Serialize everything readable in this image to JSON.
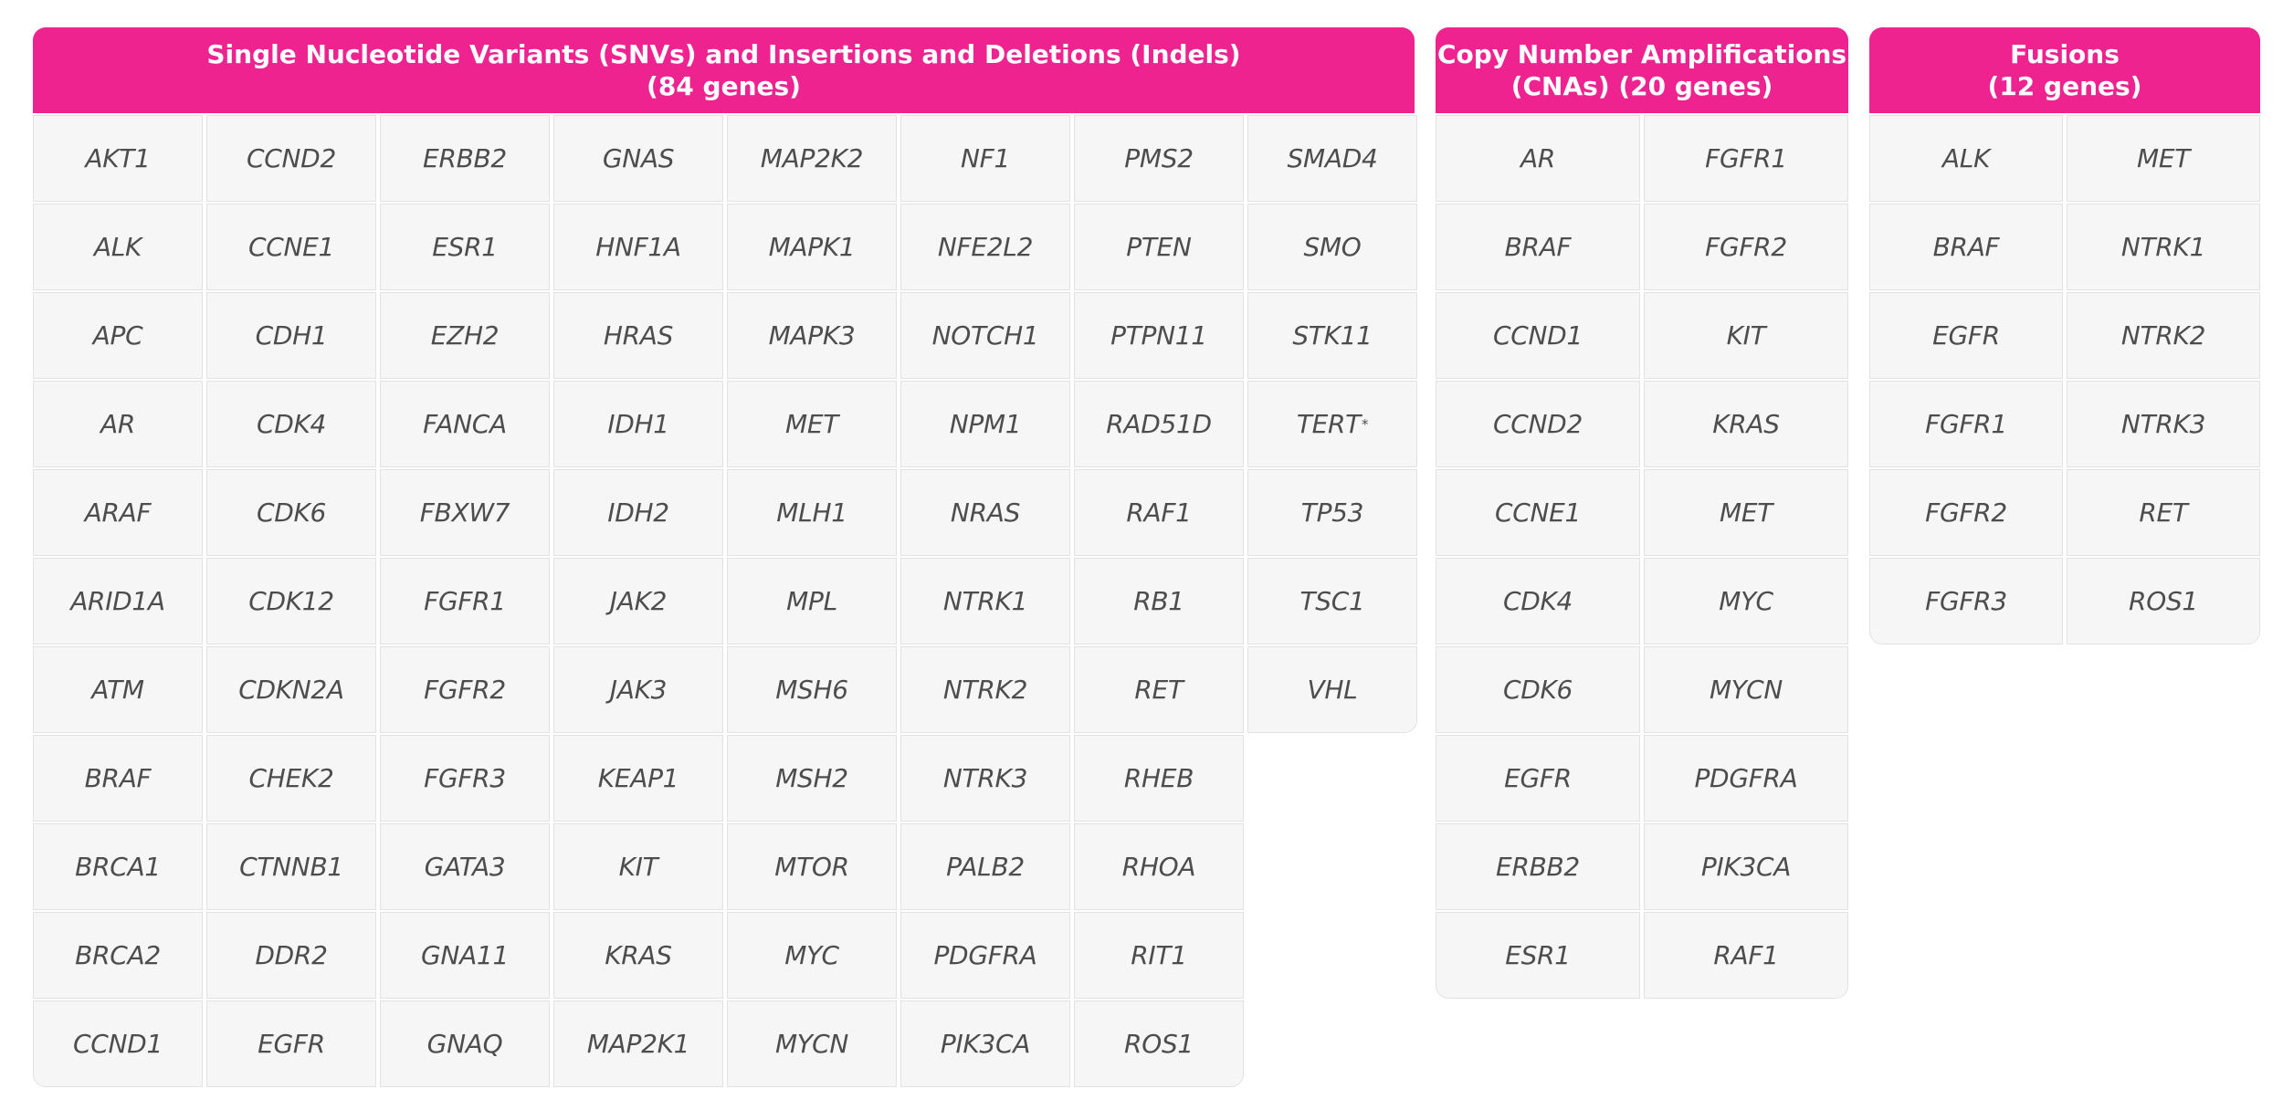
{
  "panels": [
    {
      "header_line1": "Single Nucleotide Variants (SNVs) and Insertions and Deletions (Indels)",
      "header_line2": "(84 genes)",
      "columns": [
        [
          "AKT1",
          "ALK",
          "APC",
          "AR",
          "ARAF",
          "ARID1A",
          "ATM",
          "BRAF",
          "BRCA1",
          "BRCA2",
          "CCND1"
        ],
        [
          "CCND2",
          "CCNE1",
          "CDH1",
          "CDK4",
          "CDK6",
          "CDK12",
          "CDKN2A",
          "CHEK2",
          "CTNNB1",
          "DDR2",
          "EGFR"
        ],
        [
          "ERBB2",
          "ESR1",
          "EZH2",
          "FANCA",
          "FBXW7",
          "FGFR1",
          "FGFR2",
          "FGFR3",
          "GATA3",
          "GNA11",
          "GNAQ"
        ],
        [
          "GNAS",
          "HNF1A",
          "HRAS",
          "IDH1",
          "IDH2",
          "JAK2",
          "JAK3",
          "KEAP1",
          "KIT",
          "KRAS",
          "MAP2K1"
        ],
        [
          "MAP2K2",
          "MAPK1",
          "MAPK3",
          "MET",
          "MLH1",
          "MPL",
          "MSH6",
          "MSH2",
          "MTOR",
          "MYC",
          "MYCN"
        ],
        [
          "NF1",
          "NFE2L2",
          "NOTCH1",
          "NPM1",
          "NRAS",
          "NTRK1",
          "NTRK2",
          "NTRK3",
          "PALB2",
          "PDGFRA",
          "PIK3CA"
        ],
        [
          "PMS2",
          "PTEN",
          "PTPN11",
          "RAD51D",
          "RAF1",
          "RB1",
          "RET",
          "RHEB",
          "RHOA",
          "RIT1",
          "ROS1"
        ],
        [
          "SMAD4",
          "SMO",
          "STK11",
          "TERT",
          "TP53",
          "TSC1",
          "VHL"
        ]
      ],
      "footnote_marks": {
        "TERT": "*"
      }
    },
    {
      "header_line1": "Copy Number Amplifications",
      "header_line2": "(CNAs) (20 genes)",
      "columns": [
        [
          "AR",
          "BRAF",
          "CCND1",
          "CCND2",
          "CCNE1",
          "CDK4",
          "CDK6",
          "EGFR",
          "ERBB2",
          "ESR1"
        ],
        [
          "FGFR1",
          "FGFR2",
          "KIT",
          "KRAS",
          "MET",
          "MYC",
          "MYCN",
          "PDGFRA",
          "PIK3CA",
          "RAF1"
        ]
      ]
    },
    {
      "header_line1": "Fusions",
      "header_line2": "(12 genes)",
      "columns": [
        [
          "ALK",
          "BRAF",
          "EGFR",
          "FGFR1",
          "FGFR2",
          "FGFR3"
        ],
        [
          "MET",
          "NTRK1",
          "NTRK2",
          "NTRK3",
          "RET",
          "ROS1"
        ]
      ]
    }
  ],
  "colors": {
    "header_bg": "#ee2390",
    "header_text": "#ffffff",
    "cell_bg": "#f6f6f6",
    "cell_border": "#e2e2e2",
    "cell_text": "#4d4d4d"
  }
}
